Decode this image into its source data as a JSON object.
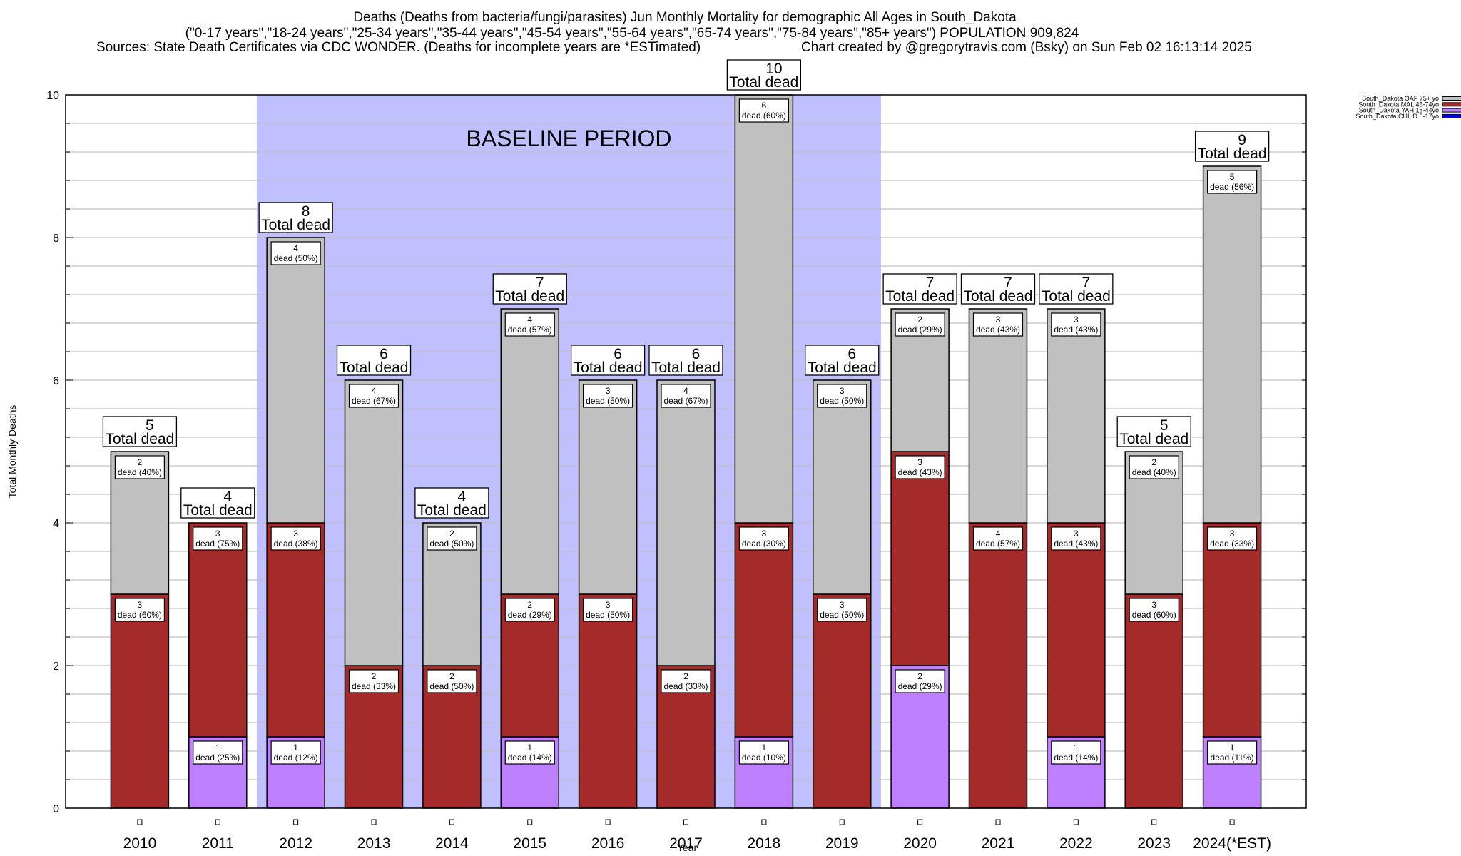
{
  "chart_data": {
    "type": "bar",
    "stacked": true,
    "title_lines": [
      "Deaths (Deaths from bacteria/fungi/parasites) Jun Monthly Mortality for demographic All Ages in South_Dakota",
      "(\"0-17 years\",\"18-24 years\",\"25-34 years\",\"35-44 years\",\"45-54 years\",\"55-64 years\",\"65-74 years\",\"75-84 years\",\"85+ years\") POPULATION 909,824"
    ],
    "sources": "Sources: State Death Certificates via CDC WONDER. (Deaths for incomplete years are *ESTimated)",
    "credit": "Chart created by @gregorytravis.com (Bsky) on Sun Feb 02 16:13:14 2025",
    "xlabel": "Year",
    "ylabel": "Total Monthly Deaths",
    "ylim": [
      0,
      10
    ],
    "yticks": [
      0,
      2,
      4,
      6,
      8,
      10
    ],
    "minor_grid_step": 0.4,
    "grid": true,
    "categories": [
      "2010",
      "2011",
      "2012",
      "2013",
      "2014",
      "2015",
      "2016",
      "2017",
      "2018",
      "2019",
      "2020",
      "2021",
      "2022",
      "2023",
      "2024(*EST)"
    ],
    "series": [
      {
        "name": "South_Dakota CHILD 0-17yo",
        "color": "#0000ff",
        "values": [
          0,
          0,
          0,
          0,
          0,
          0,
          0,
          0,
          0,
          0,
          0,
          0,
          0,
          0,
          0
        ]
      },
      {
        "name": "South_Dakota YAH 18-44yo",
        "color": "#bf80ff",
        "values": [
          0,
          1,
          1,
          0,
          0,
          1,
          0,
          0,
          1,
          0,
          2,
          0,
          1,
          0,
          1
        ]
      },
      {
        "name": "South_Dakota MAL 45-74yo",
        "color": "#a52a2a",
        "values": [
          3,
          3,
          3,
          2,
          2,
          2,
          3,
          2,
          3,
          3,
          3,
          4,
          3,
          3,
          3
        ]
      },
      {
        "name": "South_Dakota OAF 75+ yo",
        "color": "#c0c0c0",
        "values": [
          2,
          0,
          4,
          4,
          2,
          4,
          3,
          4,
          6,
          3,
          2,
          3,
          3,
          2,
          5
        ]
      }
    ],
    "totals": [
      5,
      4,
      8,
      6,
      4,
      7,
      6,
      6,
      10,
      6,
      7,
      7,
      7,
      5,
      9
    ],
    "segment_percents": {
      "YAH": [
        "",
        "25%",
        "12%",
        "",
        "",
        "14%",
        "",
        "",
        "10%",
        "",
        "29%",
        "",
        "14%",
        "",
        "11%"
      ],
      "MAL": [
        "60%",
        "75%",
        "38%",
        "33%",
        "50%",
        "29%",
        "50%",
        "33%",
        "30%",
        "50%",
        "43%",
        "57%",
        "43%",
        "60%",
        "33%"
      ],
      "OAF": [
        "40%",
        "",
        "50%",
        "67%",
        "50%",
        "57%",
        "50%",
        "67%",
        "60%",
        "50%",
        "29%",
        "43%",
        "43%",
        "40%",
        "56%"
      ]
    },
    "total_label_suffix": "Total dead",
    "segment_label_word": "dead",
    "legend": {
      "placement": "top-right outside",
      "entries_order": [
        "South_Dakota OAF 75+ yo",
        "South_Dakota MAL 45-74yo",
        "South_Dakota YAH 18-44yo",
        "South_Dakota CHILD 0-17yo"
      ]
    },
    "annotations": [
      {
        "text": "BASELINE PERIOD",
        "x_start": "2012",
        "x_end": "2019",
        "color": "#c0c0ff"
      }
    ]
  }
}
